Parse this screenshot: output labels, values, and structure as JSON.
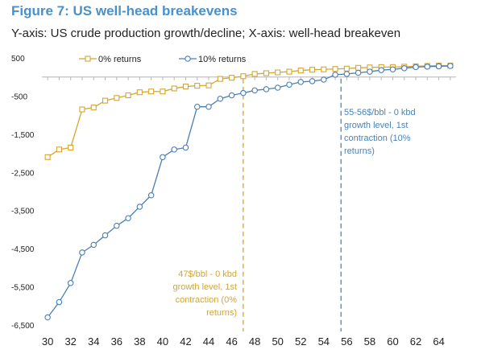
{
  "title": "Figure 7: US well-head breakevens",
  "subtitle": "Y-axis: US crude production growth/decline; X-axis: well-head breakeven",
  "chart_data": {
    "type": "line",
    "title": "Figure 7: US well-head breakevens",
    "xlabel": "",
    "ylabel": "",
    "x": [
      30,
      31,
      32,
      33,
      34,
      35,
      36,
      37,
      38,
      39,
      40,
      41,
      42,
      43,
      44,
      45,
      46,
      47,
      48,
      49,
      50,
      51,
      52,
      53,
      54,
      55,
      56,
      57,
      58,
      59,
      60,
      61,
      62,
      63,
      64,
      65
    ],
    "xticks": [
      30,
      32,
      34,
      36,
      38,
      40,
      42,
      44,
      46,
      48,
      50,
      52,
      54,
      56,
      58,
      60,
      62,
      64
    ],
    "yticks": [
      500,
      -500,
      -1500,
      -2500,
      -3500,
      -4500,
      -5500,
      -6500
    ],
    "ytick_labels": [
      "500",
      "-500",
      "-1,500",
      "-2,500",
      "-3,500",
      "-4,500",
      "-5,500",
      "-6,500"
    ],
    "xlim": [
      29.5,
      65.5
    ],
    "ylim": [
      -6500,
      500
    ],
    "grid": false,
    "legend": "top-center",
    "series": [
      {
        "name": "0% returns",
        "color": "#d6a531",
        "marker": "square",
        "values": [
          -2100,
          -1900,
          -1850,
          -850,
          -800,
          -620,
          -550,
          -480,
          -400,
          -380,
          -380,
          -300,
          -250,
          -230,
          -220,
          -50,
          -20,
          20,
          80,
          100,
          120,
          140,
          170,
          190,
          200,
          210,
          220,
          240,
          250,
          260,
          260,
          270,
          280,
          290,
          300,
          300
        ]
      },
      {
        "name": "10% returns",
        "color": "#4a7fb5",
        "marker": "circle",
        "values": [
          -6300,
          -5900,
          -5400,
          -4600,
          -4400,
          -4150,
          -3900,
          -3700,
          -3400,
          -3100,
          -2100,
          -1900,
          -1850,
          -780,
          -780,
          -570,
          -480,
          -420,
          -350,
          -320,
          -280,
          -200,
          -130,
          -110,
          -70,
          60,
          80,
          110,
          140,
          180,
          200,
          230,
          260,
          270,
          280,
          290
        ]
      }
    ],
    "annotations": [
      {
        "lines": [
          "47$/bbl - 0 kbd",
          "growth level, 1st",
          "contraction (0%",
          "returns)"
        ],
        "x": 47,
        "color": "#d6a531"
      },
      {
        "lines": [
          "55-56$/bbl - 0 kbd",
          "growth level, 1st",
          "contraction (10%",
          "returns)"
        ],
        "x": 55.5,
        "color": "#4a83b8"
      }
    ]
  }
}
